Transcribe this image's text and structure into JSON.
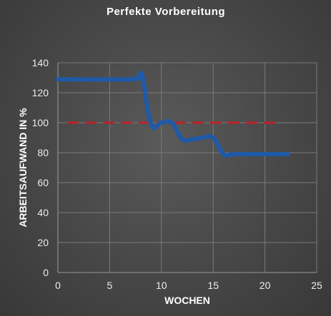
{
  "chart_data": {
    "type": "line",
    "title": "Perfekte Vorbereitung",
    "xlabel": "WOCHEN",
    "ylabel": "ARBEITSAUFWAND IN %",
    "xlim": [
      0,
      25
    ],
    "ylim": [
      0,
      140
    ],
    "xticks": [
      0,
      5,
      10,
      15,
      20,
      25
    ],
    "yticks": [
      0,
      20,
      40,
      60,
      80,
      100,
      120,
      140
    ],
    "grid": true,
    "series": [
      {
        "color": "#1f5aa8",
        "style": "solid",
        "points": [
          [
            0,
            129
          ],
          [
            7,
            129
          ],
          [
            7.8,
            131
          ],
          [
            8.2,
            130
          ],
          [
            9,
            99
          ],
          [
            10,
            100
          ],
          [
            11,
            100
          ],
          [
            12,
            89
          ],
          [
            13,
            89
          ],
          [
            14,
            90
          ],
          [
            15,
            90
          ],
          [
            16,
            79
          ],
          [
            17,
            79
          ],
          [
            20,
            79
          ],
          [
            22.2,
            79
          ]
        ]
      },
      {
        "color": "#c0202a",
        "style": "dashed",
        "points": [
          [
            0.9,
            100
          ],
          [
            21.5,
            100
          ]
        ]
      }
    ]
  }
}
